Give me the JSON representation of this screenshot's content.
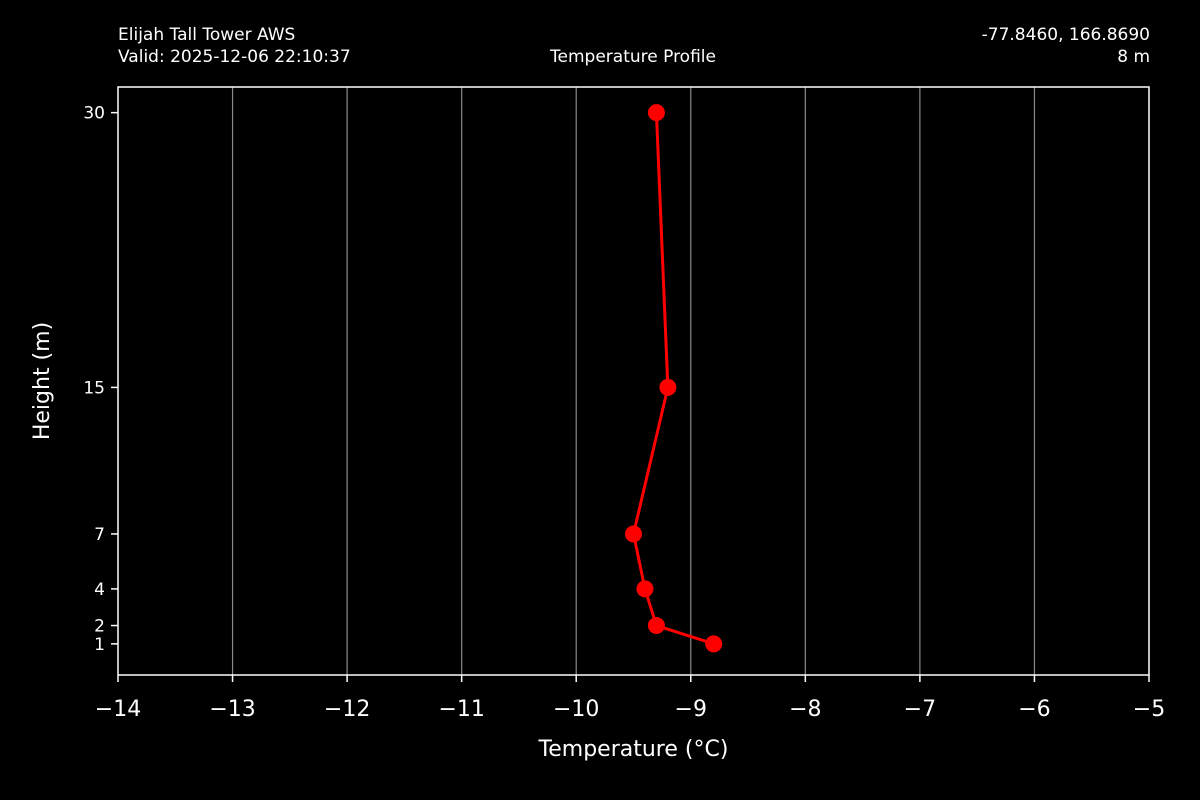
{
  "header": {
    "station": "Elijah Tall Tower AWS",
    "valid": "Valid: 2025-12-06 22:10:37",
    "title": "Temperature Profile",
    "coords": "-77.8460, 166.8690",
    "elevation": "8 m"
  },
  "chart_data": {
    "type": "line",
    "title": "Temperature Profile",
    "xlabel": "Temperature (°C)",
    "ylabel": "Height (m)",
    "xlim": [
      -14,
      -5
    ],
    "ylim": [
      -0.7,
      31.4
    ],
    "x_ticks": [
      -14,
      -13,
      -12,
      -11,
      -10,
      -9,
      -8,
      -7,
      -6,
      -5
    ],
    "x_tick_labels": [
      "−14",
      "−13",
      "−12",
      "−11",
      "−10",
      "−9",
      "−8",
      "−7",
      "−6",
      "−5"
    ],
    "y_ticks": [
      1,
      2,
      4,
      7,
      15,
      30
    ],
    "y_tick_labels": [
      "1",
      "2",
      "4",
      "7",
      "15",
      "30"
    ],
    "grid": "vertical",
    "series": [
      {
        "color": "#ff0000",
        "points": [
          {
            "height": 1,
            "temperature": -8.8
          },
          {
            "height": 2,
            "temperature": -9.3
          },
          {
            "height": 4,
            "temperature": -9.4
          },
          {
            "height": 7,
            "temperature": -9.5
          },
          {
            "height": 15,
            "temperature": -9.2
          },
          {
            "height": 30,
            "temperature": -9.3
          }
        ]
      }
    ]
  }
}
